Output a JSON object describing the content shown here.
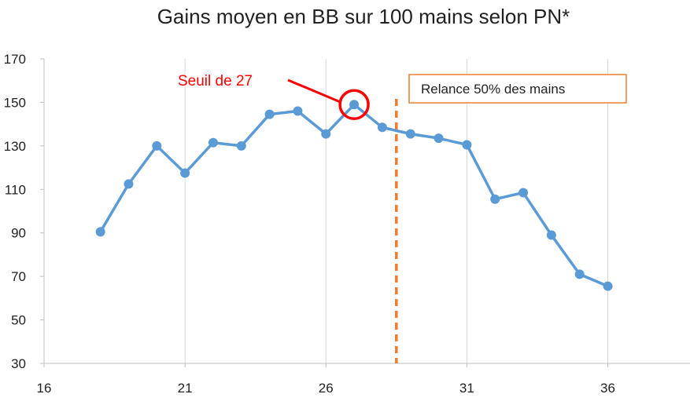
{
  "chart_data": {
    "type": "line",
    "title": "Gains moyen en BB sur 100 mains selon PN*",
    "xlabel": "",
    "ylabel": "",
    "xlim": [
      16,
      39
    ],
    "ylim": [
      30,
      170
    ],
    "x_ticks": [
      16,
      21,
      26,
      31,
      36
    ],
    "y_ticks": [
      30,
      50,
      70,
      90,
      110,
      130,
      150,
      170
    ],
    "grid": "vertical",
    "series": [
      {
        "x": [
          18,
          19,
          20,
          21,
          22,
          23,
          24,
          25,
          26,
          27,
          28,
          29,
          30,
          31,
          32,
          33,
          34,
          35,
          36
        ],
        "values": [
          90.5,
          112.5,
          130,
          117.5,
          131.5,
          130,
          144.5,
          146,
          135.5,
          149,
          138.5,
          135.5,
          133.5,
          130.5,
          105.5,
          108.5,
          89,
          71,
          65.5
        ],
        "color": "#5b9bd5"
      }
    ],
    "annotations": [
      {
        "text": "Seuil de 27",
        "color": "#ff0000",
        "target_x": 27,
        "target_y": 149
      },
      {
        "text": "Relance 50% des mains",
        "box_color": "#ed7d31",
        "x": 28.5
      }
    ],
    "reference_line": {
      "x": 28.5,
      "style": "dashed",
      "color": "#ed7d31"
    },
    "legend": "none"
  }
}
